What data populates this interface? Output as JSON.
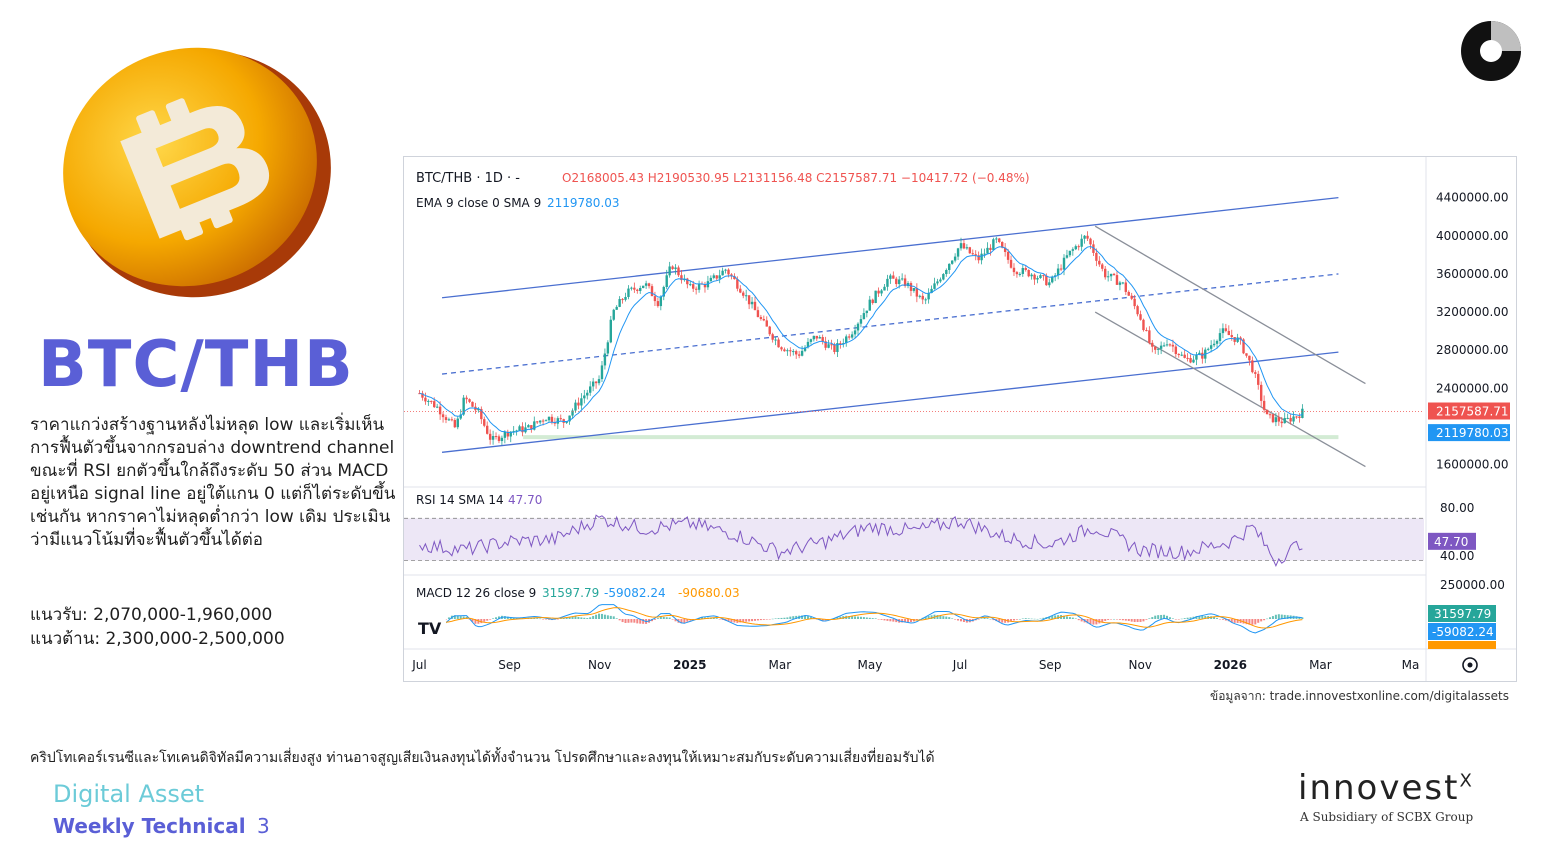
{
  "title": "BTC/THB",
  "description": "ราคาแกว่งสร้างฐานหลังไม่หลุด low และเริ่มเห็นการฟื้นตัวขึ้นจากกรอบล่าง downtrend channel ขณะที่ RSI ยกตัวขึ้นใกล้ถึงระดับ 50 ส่วน MACD อยู่เหนือ signal line อยู่ใต้แกน 0 แต่ก็ไต่ระดับขึ้นเช่นกัน หากราคาไม่หลุดต่ำกว่า low เดิม ประเมินว่ามีแนวโน้มที่จะฟื้นตัวขึ้นได้ต่อ",
  "support": "แนวรับ: 2,070,000-1,960,000",
  "resistance": "แนวต้าน: 2,300,000-2,500,000",
  "source": "ข้อมูลจาก: trade.innovestxonline.com/digitalassets",
  "disclaimer": "คริปโทเคอร์เรนซีและโทเคนดิจิทัลมีความเสี่ยงสูง ท่านอาจสูญเสียเงินลงทุนได้ทั้งจำนวน โปรดศึกษาและลงทุนให้เหมาะสมกับระดับความเสี่ยงที่ยอมรับได้",
  "footer": {
    "title": "Digital Asset",
    "subtitle": "Weekly Technical",
    "page": "3"
  },
  "brand": {
    "name": "innovest",
    "sup": "X",
    "tagline": "A Subsidiary of SCBX Group"
  },
  "colors": {
    "accent": "#5a5fd6",
    "teal": "#6ccbd8",
    "up": "#26a69a",
    "down": "#ef5350",
    "trend": "#4a6fd0"
  },
  "chart_data": {
    "type": "candlestick",
    "header": {
      "symbol": "BTC/THB · 1D · -",
      "ohlc": "O2168005.43 H2190530.95 L2131156.48 C2157587.71 −10417.72 (−0.48%)",
      "ema": "EMA 9 close 0 SMA 9",
      "ema_value": "2119780.03"
    },
    "y_axis": {
      "ticks": [
        "4400000.00",
        "4000000.00",
        "3600000.00",
        "3200000.00",
        "2800000.00",
        "2400000.00",
        "1600000.00"
      ],
      "tick_values": [
        4400000,
        4000000,
        3600000,
        3200000,
        2800000,
        2400000,
        1600000
      ],
      "range": [
        1450000,
        4700000
      ],
      "last_price_label": "2157587.71",
      "ema_label": "2119780.03"
    },
    "x_axis": {
      "labels": [
        "Jul",
        "Sep",
        "Nov",
        "2025",
        "Mar",
        "May",
        "Jul",
        "Sep",
        "Nov",
        "2026",
        "Mar",
        "Ma"
      ],
      "positions": [
        0,
        2,
        4,
        6,
        8,
        10,
        12,
        14,
        16,
        18,
        20,
        22
      ]
    },
    "price_points": [
      [
        0,
        2350000
      ],
      [
        0.4,
        2200000
      ],
      [
        0.8,
        1980000
      ],
      [
        1.0,
        2300000
      ],
      [
        1.3,
        2150000
      ],
      [
        1.6,
        1850000
      ],
      [
        2.0,
        1950000
      ],
      [
        2.4,
        1980000
      ],
      [
        2.8,
        2100000
      ],
      [
        3.2,
        2050000
      ],
      [
        3.6,
        2300000
      ],
      [
        4.0,
        2500000
      ],
      [
        4.3,
        3200000
      ],
      [
        4.6,
        3400000
      ],
      [
        5.0,
        3500000
      ],
      [
        5.3,
        3300000
      ],
      [
        5.6,
        3700000
      ],
      [
        6.0,
        3450000
      ],
      [
        6.4,
        3500000
      ],
      [
        6.8,
        3650000
      ],
      [
        7.2,
        3400000
      ],
      [
        7.6,
        3100000
      ],
      [
        8.0,
        2850000
      ],
      [
        8.4,
        2750000
      ],
      [
        8.8,
        2950000
      ],
      [
        9.2,
        2800000
      ],
      [
        9.6,
        3000000
      ],
      [
        10.0,
        3300000
      ],
      [
        10.4,
        3550000
      ],
      [
        10.8,
        3500000
      ],
      [
        11.2,
        3300000
      ],
      [
        11.6,
        3600000
      ],
      [
        12.0,
        3900000
      ],
      [
        12.4,
        3750000
      ],
      [
        12.8,
        3950000
      ],
      [
        13.2,
        3650000
      ],
      [
        13.6,
        3600000
      ],
      [
        14.0,
        3500000
      ],
      [
        14.4,
        3800000
      ],
      [
        14.8,
        4000000
      ],
      [
        15.2,
        3600000
      ],
      [
        15.6,
        3500000
      ],
      [
        16.0,
        3150000
      ],
      [
        16.3,
        2750000
      ],
      [
        16.6,
        2900000
      ],
      [
        17.0,
        2700000
      ],
      [
        17.4,
        2750000
      ],
      [
        17.8,
        3000000
      ],
      [
        18.2,
        2900000
      ],
      [
        18.5,
        2600000
      ],
      [
        18.8,
        2100000
      ],
      [
        19.2,
        2050000
      ],
      [
        19.6,
        2150000
      ]
    ],
    "trend_lines": [
      {
        "name": "upper",
        "from": [
          0.5,
          3350000
        ],
        "to": [
          20.4,
          4400000
        ]
      },
      {
        "name": "lower",
        "from": [
          0.5,
          1730000
        ],
        "to": [
          20.4,
          2780000
        ]
      },
      {
        "name": "mid",
        "from": [
          0.5,
          2550000
        ],
        "to": [
          20.4,
          3600000
        ]
      },
      {
        "name": "down-upper",
        "from": [
          15.0,
          4100000
        ],
        "to": [
          21.0,
          2450000
        ]
      },
      {
        "name": "down-lower",
        "from": [
          15.0,
          3200000
        ],
        "to": [
          21.0,
          1580000
        ]
      }
    ],
    "support_zone": [
      1870000,
      1910000
    ],
    "rsi": {
      "label": "RSI 14 SMA 14",
      "value": "47.70",
      "ticks": [
        "80.00",
        "40.00"
      ],
      "range": [
        20,
        95
      ],
      "bands": [
        70,
        30
      ],
      "points": [
        [
          0,
          45
        ],
        [
          1,
          40
        ],
        [
          2,
          48
        ],
        [
          3,
          50
        ],
        [
          4,
          70
        ],
        [
          5,
          60
        ],
        [
          6,
          65
        ],
        [
          7,
          55
        ],
        [
          8,
          38
        ],
        [
          9,
          48
        ],
        [
          10,
          62
        ],
        [
          11,
          58
        ],
        [
          12,
          68
        ],
        [
          13,
          52
        ],
        [
          14,
          45
        ],
        [
          15,
          62
        ],
        [
          16,
          40
        ],
        [
          17,
          38
        ],
        [
          18,
          48
        ],
        [
          18.5,
          62
        ],
        [
          19,
          30
        ],
        [
          19.6,
          47.7
        ]
      ]
    },
    "macd": {
      "label": "MACD 12 26 close 9",
      "values": [
        "31597.79",
        "-59082.24",
        "-90680.03"
      ],
      "tick": "250000.00",
      "labels_right": [
        "31597.79",
        "-59082.24",
        "-90680.03"
      ]
    }
  }
}
